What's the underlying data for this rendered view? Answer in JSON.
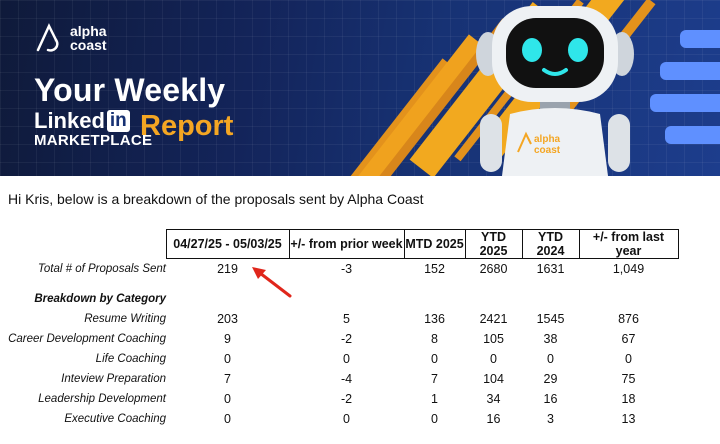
{
  "banner": {
    "logo_line1": "alpha",
    "logo_line2": "coast",
    "title": "Your Weekly",
    "linked_word": "Linked",
    "in_word": "in",
    "marketplace": "MARKETPLACE",
    "report": "Report",
    "robot_logo_line1": "alpha",
    "robot_logo_line2": "coast",
    "colors": {
      "accent": "#f4a623",
      "navy": "#13245a",
      "blue_bar": "#5f90ff"
    }
  },
  "intro_text": "Hi Kris, below is a breakdown of the proposals sent by Alpha Coast",
  "table": {
    "headers": [
      "04/27/25 - 05/03/25",
      "+/- from prior week",
      "MTD 2025",
      "YTD 2025",
      "YTD 2024",
      "+/- from last year"
    ],
    "total_row": {
      "label": "Total # of Proposals Sent",
      "values": [
        "219",
        "-3",
        "152",
        "2680",
        "1631",
        "1,049"
      ]
    },
    "category_heading": "Breakdown by Category",
    "categories": [
      {
        "label": "Resume Writing",
        "values": [
          "203",
          "5",
          "136",
          "2421",
          "1545",
          "876"
        ]
      },
      {
        "label": "Career Development Coaching",
        "values": [
          "9",
          "-2",
          "8",
          "105",
          "38",
          "67"
        ]
      },
      {
        "label": "Life Coaching",
        "values": [
          "0",
          "0",
          "0",
          "0",
          "0",
          "0"
        ]
      },
      {
        "label": "Inteview Preparation",
        "values": [
          "7",
          "-4",
          "7",
          "104",
          "29",
          "75"
        ]
      },
      {
        "label": "Leadership Development",
        "values": [
          "0",
          "-2",
          "1",
          "34",
          "16",
          "18"
        ]
      },
      {
        "label": "Executive Coaching",
        "values": [
          "0",
          "0",
          "0",
          "16",
          "3",
          "13"
        ]
      }
    ]
  },
  "annotation": {
    "arrow_color": "#e0261b"
  }
}
